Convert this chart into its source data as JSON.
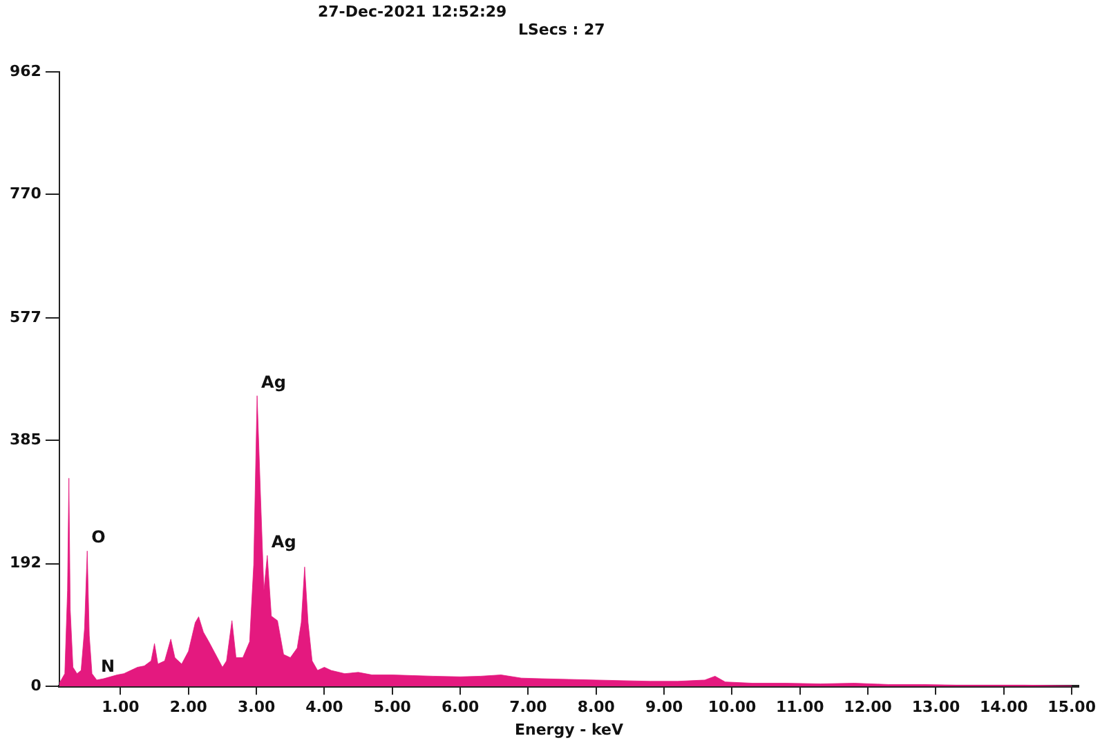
{
  "chart_data": {
    "type": "area",
    "title": "27-Dec-2021 12:52:29",
    "subtitle": "LSecs : 27",
    "xlabel": "Energy - keV",
    "x": [
      0.1,
      0.18,
      0.22,
      0.24,
      0.26,
      0.3,
      0.36,
      0.42,
      0.47,
      0.51,
      0.54,
      0.58,
      0.65,
      0.75,
      0.85,
      0.95,
      1.05,
      1.15,
      1.25,
      1.35,
      1.45,
      1.5,
      1.55,
      1.65,
      1.74,
      1.8,
      1.9,
      2.0,
      2.1,
      2.15,
      2.22,
      2.3,
      2.4,
      2.5,
      2.56,
      2.64,
      2.7,
      2.8,
      2.9,
      2.96,
      3.01,
      3.06,
      3.11,
      3.16,
      3.22,
      3.31,
      3.4,
      3.5,
      3.6,
      3.66,
      3.71,
      3.76,
      3.82,
      3.9,
      4.0,
      4.1,
      4.3,
      4.5,
      4.7,
      5.0,
      5.3,
      5.6,
      6.0,
      6.3,
      6.6,
      6.9,
      7.2,
      7.6,
      8.0,
      8.4,
      8.8,
      9.2,
      9.6,
      9.75,
      9.9,
      10.3,
      10.8,
      11.3,
      11.8,
      12.3,
      12.8,
      13.3,
      13.8,
      14.3,
      15.0
    ],
    "series": [
      {
        "color": "#e4197f",
        "values": [
          5,
          20,
          150,
          326,
          120,
          30,
          20,
          25,
          90,
          212,
          80,
          20,
          10,
          12,
          15,
          18,
          20,
          25,
          30,
          32,
          40,
          67,
          35,
          40,
          74,
          45,
          35,
          55,
          100,
          109,
          85,
          70,
          50,
          30,
          40,
          103,
          45,
          45,
          70,
          190,
          455,
          300,
          150,
          205,
          110,
          103,
          50,
          45,
          60,
          100,
          187,
          100,
          40,
          25,
          30,
          25,
          20,
          22,
          18,
          18,
          17,
          16,
          15,
          16,
          18,
          13,
          12,
          11,
          10,
          9,
          8,
          8,
          10,
          16,
          7,
          5,
          5,
          4,
          5,
          3,
          3,
          2,
          2,
          2,
          1
        ]
      }
    ],
    "xlim": [
      0.1,
      15.1
    ],
    "ylim": [
      0,
      962
    ],
    "xticks": [
      {
        "value": 1,
        "label": "1.00"
      },
      {
        "value": 2,
        "label": "2.00"
      },
      {
        "value": 3,
        "label": "3.00"
      },
      {
        "value": 4,
        "label": "4.00"
      },
      {
        "value": 5,
        "label": "5.00"
      },
      {
        "value": 6,
        "label": "6.00"
      },
      {
        "value": 7,
        "label": "7.00"
      },
      {
        "value": 8,
        "label": "8.00"
      },
      {
        "value": 9,
        "label": "9.00"
      },
      {
        "value": 10,
        "label": "10.00"
      },
      {
        "value": 11,
        "label": "11.00"
      },
      {
        "value": 12,
        "label": "12.00"
      },
      {
        "value": 13,
        "label": "13.00"
      },
      {
        "value": 14,
        "label": "14.00"
      },
      {
        "value": 15,
        "label": "15.00"
      }
    ],
    "yticks": [
      0,
      192,
      385,
      577,
      770,
      962
    ],
    "annotations": [
      {
        "text": "Ag",
        "x": 3.01,
        "y": 455
      },
      {
        "text": "Ag",
        "x": 3.16,
        "y": 205
      },
      {
        "text": "O",
        "x": 0.51,
        "y": 212
      },
      {
        "text": "N",
        "x": 0.65,
        "y": 10
      }
    ]
  }
}
